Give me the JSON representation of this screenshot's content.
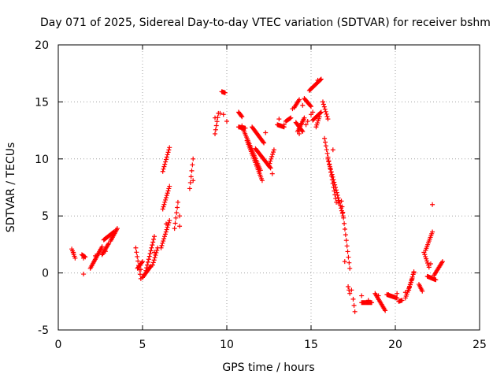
{
  "chart_data": {
    "type": "scatter",
    "title": "Day 071 of 2025, Sidereal Day-to-day VTEC variation (SDTVAR) for receiver bshm",
    "xlabel": "GPS time / hours",
    "ylabel": "SDTVAR / TECUs",
    "xlim": [
      0,
      25
    ],
    "ylim": [
      -5,
      20
    ],
    "xticks": [
      0,
      5,
      10,
      15,
      20,
      25
    ],
    "yticks": [
      -5,
      0,
      5,
      10,
      15,
      20
    ],
    "xtick_labels": [
      "0",
      "5",
      "10",
      "15",
      "20",
      "25"
    ],
    "ytick_labels": [
      "-5",
      "0",
      "5",
      "10",
      "15",
      "20"
    ],
    "grid": true,
    "marker": "+",
    "color": "#ff0000",
    "segments": [
      [
        [
          0.8,
          2.1
        ],
        [
          1.0,
          1.3
        ]
      ],
      [
        [
          1.4,
          1.6
        ],
        [
          1.6,
          1.4
        ]
      ],
      [
        [
          1.9,
          0.4
        ],
        [
          2.6,
          2.3
        ]
      ],
      [
        [
          2.6,
          1.6
        ],
        [
          3.0,
          2.6
        ]
      ],
      [
        [
          2.7,
          2.9
        ],
        [
          3.3,
          3.6
        ]
      ],
      [
        [
          3.1,
          2.8
        ],
        [
          3.5,
          3.9
        ]
      ],
      [
        [
          4.6,
          2.2
        ],
        [
          4.9,
          -0.5
        ]
      ],
      [
        [
          4.7,
          0.4
        ],
        [
          5.0,
          1.0
        ]
      ],
      [
        [
          5.0,
          -0.4
        ],
        [
          5.5,
          0.6
        ]
      ],
      [
        [
          5.2,
          0.2
        ],
        [
          5.7,
          3.2
        ]
      ],
      [
        [
          5.6,
          0.7
        ],
        [
          5.9,
          2.2
        ]
      ],
      [
        [
          6.1,
          2.2
        ],
        [
          6.6,
          4.6
        ]
      ],
      [
        [
          6.2,
          5.6
        ],
        [
          6.6,
          7.6
        ]
      ],
      [
        [
          6.2,
          8.9
        ],
        [
          6.6,
          11.0
        ]
      ],
      [
        [
          6.9,
          3.9
        ],
        [
          7.1,
          6.2
        ]
      ],
      [
        [
          7.8,
          7.4
        ],
        [
          8.0,
          10.0
        ]
      ],
      [
        [
          9.3,
          12.2
        ],
        [
          9.5,
          14.0
        ]
      ],
      [
        [
          9.7,
          15.9
        ],
        [
          9.9,
          15.8
        ]
      ],
      [
        [
          10.7,
          14.1
        ],
        [
          10.9,
          13.7
        ]
      ],
      [
        [
          10.7,
          12.8
        ],
        [
          11.1,
          12.7
        ]
      ],
      [
        [
          11.0,
          12.5
        ],
        [
          12.0,
          9.0
        ]
      ],
      [
        [
          11.2,
          11.6
        ],
        [
          12.1,
          8.1
        ]
      ],
      [
        [
          11.5,
          12.8
        ],
        [
          12.2,
          11.4
        ]
      ],
      [
        [
          11.7,
          10.9
        ],
        [
          12.6,
          9.2
        ]
      ],
      [
        [
          12.5,
          9.4
        ],
        [
          12.8,
          10.8
        ]
      ],
      [
        [
          13.0,
          13.0
        ],
        [
          13.4,
          12.8
        ]
      ],
      [
        [
          13.5,
          13.3
        ],
        [
          13.8,
          13.6
        ]
      ],
      [
        [
          14.0,
          14.5
        ],
        [
          14.3,
          15.2
        ]
      ],
      [
        [
          14.1,
          13.2
        ],
        [
          14.5,
          12.4
        ]
      ],
      [
        [
          14.2,
          12.4
        ],
        [
          14.6,
          13.6
        ]
      ],
      [
        [
          14.6,
          15.3
        ],
        [
          15.0,
          14.6
        ]
      ],
      [
        [
          14.9,
          16.0
        ],
        [
          15.6,
          17.0
        ]
      ],
      [
        [
          15.1,
          13.4
        ],
        [
          15.6,
          14.1
        ]
      ],
      [
        [
          15.3,
          12.8
        ],
        [
          15.5,
          13.7
        ]
      ],
      [
        [
          15.7,
          15.0
        ],
        [
          16.0,
          13.5
        ]
      ],
      [
        [
          15.8,
          11.8
        ],
        [
          16.5,
          6.2
        ]
      ],
      [
        [
          16.0,
          10.0
        ],
        [
          16.9,
          5.0
        ]
      ],
      [
        [
          16.8,
          6.3
        ],
        [
          17.3,
          0.4
        ]
      ],
      [
        [
          17.2,
          -1.2
        ],
        [
          17.3,
          -1.8
        ]
      ],
      [
        [
          17.5,
          -2.3
        ],
        [
          17.6,
          -3.4
        ]
      ],
      [
        [
          18.0,
          -2.6
        ],
        [
          18.6,
          -2.6
        ]
      ],
      [
        [
          18.8,
          -1.8
        ],
        [
          19.4,
          -3.3
        ]
      ],
      [
        [
          19.5,
          -1.9
        ],
        [
          20.1,
          -2.2
        ]
      ],
      [
        [
          20.2,
          -2.5
        ],
        [
          20.4,
          -2.4
        ]
      ],
      [
        [
          20.6,
          -2.2
        ],
        [
          21.0,
          -0.5
        ]
      ],
      [
        [
          20.8,
          -1.5
        ],
        [
          21.1,
          0.1
        ]
      ],
      [
        [
          21.4,
          -1.0
        ],
        [
          21.6,
          -1.6
        ]
      ],
      [
        [
          21.7,
          1.8
        ],
        [
          22.0,
          0.5
        ]
      ],
      [
        [
          21.8,
          2.0
        ],
        [
          22.2,
          3.6
        ]
      ],
      [
        [
          21.9,
          -0.3
        ],
        [
          22.4,
          -0.6
        ]
      ],
      [
        [
          22.3,
          -0.2
        ],
        [
          22.8,
          1.0
        ]
      ]
    ],
    "points": [
      [
        0.9,
        1.8
      ],
      [
        1.5,
        -0.1
      ],
      [
        1.5,
        1.3
      ],
      [
        2.2,
        1.5
      ],
      [
        2.8,
        1.9
      ],
      [
        4.9,
        0.3
      ],
      [
        5.7,
        1.8
      ],
      [
        6.4,
        4.3
      ],
      [
        7.2,
        4.1
      ],
      [
        7.2,
        5.0
      ],
      [
        8.0,
        8.1
      ],
      [
        9.3,
        13.6
      ],
      [
        9.6,
        14.0
      ],
      [
        9.8,
        13.9
      ],
      [
        10.0,
        13.3
      ],
      [
        10.9,
        12.9
      ],
      [
        12.3,
        12.3
      ],
      [
        12.7,
        8.7
      ],
      [
        13.1,
        13.5
      ],
      [
        13.4,
        13.0
      ],
      [
        13.9,
        14.4
      ],
      [
        14.3,
        12.2
      ],
      [
        14.5,
        14.7
      ],
      [
        14.7,
        13.0
      ],
      [
        14.8,
        13.3
      ],
      [
        15.0,
        13.9
      ],
      [
        15.1,
        14.1
      ],
      [
        15.4,
        16.9
      ],
      [
        16.3,
        10.8
      ],
      [
        16.6,
        6.2
      ],
      [
        17.0,
        1.0
      ],
      [
        17.4,
        -1.5
      ],
      [
        18.0,
        -2.0
      ],
      [
        18.4,
        -2.4
      ],
      [
        19.0,
        -2.0
      ],
      [
        19.6,
        -1.9
      ],
      [
        20.1,
        -1.8
      ],
      [
        20.6,
        -1.7
      ],
      [
        21.1,
        0.0
      ],
      [
        22.1,
        0.8
      ],
      [
        22.2,
        6.0
      ]
    ]
  }
}
